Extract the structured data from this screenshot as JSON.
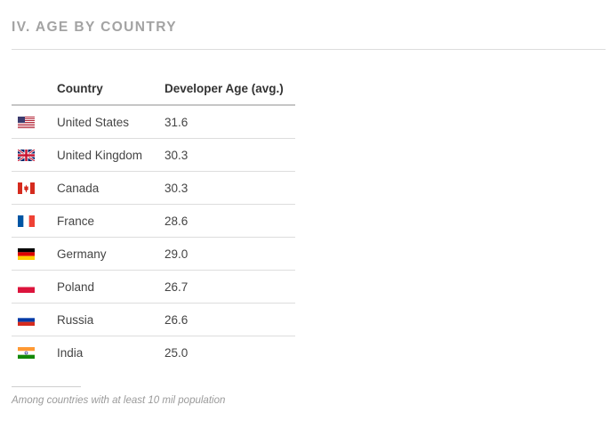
{
  "section": {
    "title": "IV. AGE BY COUNTRY"
  },
  "table": {
    "headers": {
      "country": "Country",
      "age": "Developer Age (avg.)"
    },
    "rows": [
      {
        "flag_icon": "us-flag-icon",
        "country": "United States",
        "age": "31.6"
      },
      {
        "flag_icon": "uk-flag-icon",
        "country": "United Kingdom",
        "age": "30.3"
      },
      {
        "flag_icon": "canada-flag-icon",
        "country": "Canada",
        "age": "30.3"
      },
      {
        "flag_icon": "france-flag-icon",
        "country": "France",
        "age": "28.6"
      },
      {
        "flag_icon": "germany-flag-icon",
        "country": "Germany",
        "age": "29.0"
      },
      {
        "flag_icon": "poland-flag-icon",
        "country": "Poland",
        "age": "26.7"
      },
      {
        "flag_icon": "russia-flag-icon",
        "country": "Russia",
        "age": "26.6"
      },
      {
        "flag_icon": "india-flag-icon",
        "country": "India",
        "age": "25.0"
      }
    ]
  },
  "footnote": {
    "text": "Among countries with at least 10 mil population"
  }
}
